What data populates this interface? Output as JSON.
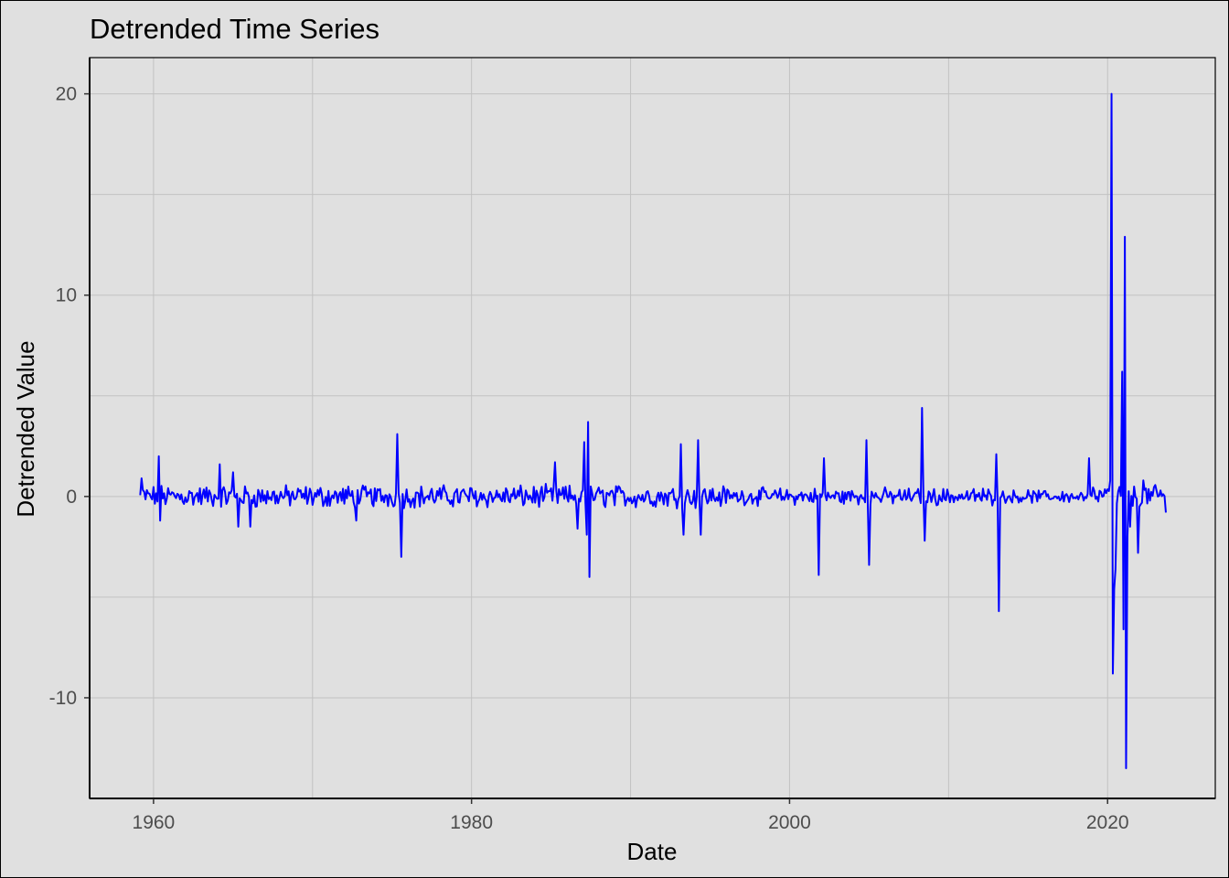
{
  "chart_data": {
    "type": "line",
    "title": "Detrended Time Series",
    "xlabel": "Date",
    "ylabel": "Detrended Value",
    "x_type": "date",
    "xlim": [
      "1955-12-25",
      "2026-10-10"
    ],
    "ylim": [
      -15,
      21.8
    ],
    "x_ticks": [
      {
        "label": "1960",
        "value": "1960-01-01"
      },
      {
        "label": "1980",
        "value": "1980-01-01"
      },
      {
        "label": "2000",
        "value": "2000-01-01"
      },
      {
        "label": "2020",
        "value": "2020-01-01"
      }
    ],
    "y_ticks": [
      {
        "label": "-10",
        "value": -10
      },
      {
        "label": "0",
        "value": 0
      },
      {
        "label": "10",
        "value": 10
      },
      {
        "label": "20",
        "value": 20
      }
    ],
    "x_minor_gridlines": [
      "1970-01-01",
      "1990-01-01",
      "2010-01-01"
    ],
    "y_minor_gridlines": [
      -5,
      5,
      15
    ],
    "grid": true,
    "legend": "none",
    "series": [
      {
        "color": "#0000ff",
        "sampling": "monthly",
        "start": "1959-03",
        "end": "2023-09",
        "notable_points": [
          {
            "x": "1959-04",
            "y": 0.9
          },
          {
            "x": "1960-05",
            "y": 2.0
          },
          {
            "x": "1960-06",
            "y": -1.2
          },
          {
            "x": "1964-03",
            "y": 1.6
          },
          {
            "x": "1965-01",
            "y": 1.2
          },
          {
            "x": "1965-05",
            "y": -1.5
          },
          {
            "x": "1966-02",
            "y": -1.5
          },
          {
            "x": "1972-10",
            "y": -1.2
          },
          {
            "x": "1975-05",
            "y": 3.1
          },
          {
            "x": "1975-08",
            "y": -3.0
          },
          {
            "x": "1985-04",
            "y": 1.7
          },
          {
            "x": "1986-09",
            "y": -1.6
          },
          {
            "x": "1987-02",
            "y": 2.7
          },
          {
            "x": "1987-04",
            "y": -1.9
          },
          {
            "x": "1987-05",
            "y": 3.7
          },
          {
            "x": "1987-06",
            "y": -4.0
          },
          {
            "x": "1993-03",
            "y": 2.6
          },
          {
            "x": "1993-05",
            "y": -1.9
          },
          {
            "x": "1994-04",
            "y": 2.8
          },
          {
            "x": "1994-06",
            "y": -1.9
          },
          {
            "x": "2001-11",
            "y": -3.9
          },
          {
            "x": "2002-03",
            "y": 1.9
          },
          {
            "x": "2004-11",
            "y": 2.8
          },
          {
            "x": "2005-01",
            "y": -3.4
          },
          {
            "x": "2008-05",
            "y": 4.4
          },
          {
            "x": "2008-07",
            "y": -2.2
          },
          {
            "x": "2013-01",
            "y": 2.1
          },
          {
            "x": "2013-03",
            "y": -5.7
          },
          {
            "x": "2018-11",
            "y": 1.9
          },
          {
            "x": "2020-03",
            "y": 0.8
          },
          {
            "x": "2020-04",
            "y": 20.0
          },
          {
            "x": "2020-05",
            "y": -8.8
          },
          {
            "x": "2020-06",
            "y": -4.6
          },
          {
            "x": "2020-07",
            "y": -3.6
          },
          {
            "x": "2020-12",
            "y": 6.2
          },
          {
            "x": "2021-01",
            "y": -6.6
          },
          {
            "x": "2021-02",
            "y": 12.9
          },
          {
            "x": "2021-03",
            "y": -13.5
          },
          {
            "x": "2021-04",
            "y": -2.0
          },
          {
            "x": "2021-06",
            "y": -1.5
          },
          {
            "x": "2021-12",
            "y": -2.8
          },
          {
            "x": "2022-04",
            "y": 0.8
          },
          {
            "x": "2023-05",
            "y": 0.3
          },
          {
            "x": "2023-09",
            "y": -0.8
          }
        ]
      }
    ]
  }
}
